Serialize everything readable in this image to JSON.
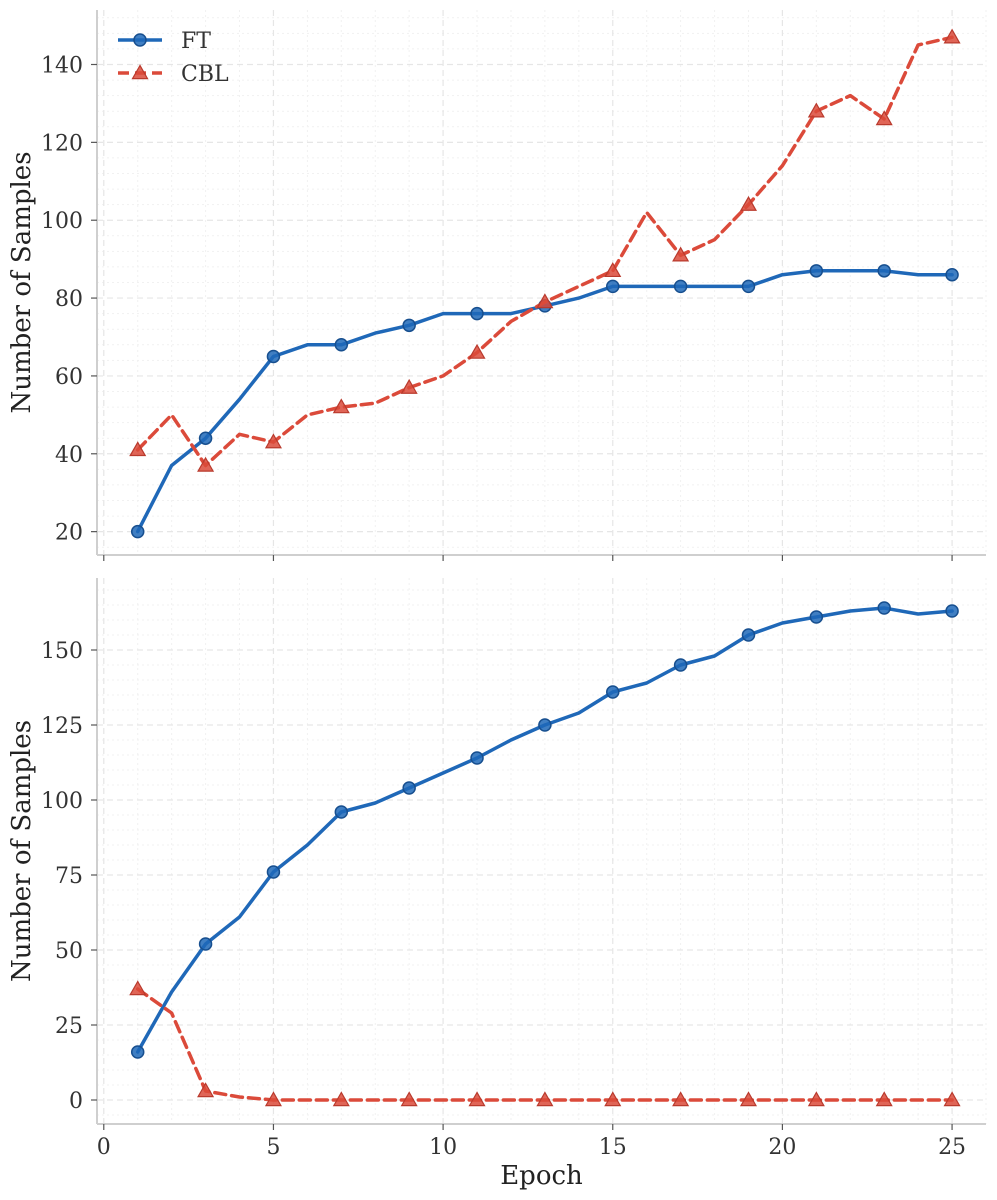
{
  "chart_data": {
    "type": "line",
    "xlabel": "Epoch",
    "xlim": [
      -0.2,
      26
    ],
    "xticks": [
      0,
      5,
      10,
      15,
      20,
      25
    ],
    "colors": {
      "FT": "#1f68b8",
      "CBL": "#db4a3a"
    },
    "legend": {
      "placement": "top-left",
      "entries": [
        "FT",
        "CBL"
      ]
    },
    "grid": true,
    "panels": [
      {
        "ylabel": "Number of Samples",
        "ylim": [
          14,
          154
        ],
        "yticks": [
          20,
          40,
          60,
          80,
          100,
          120,
          140
        ],
        "show_legend": true,
        "series": [
          {
            "name": "FT",
            "style": "solid",
            "marker": "circle",
            "x": [
              1,
              2,
              3,
              4,
              5,
              6,
              7,
              8,
              9,
              10,
              11,
              12,
              13,
              14,
              15,
              16,
              17,
              18,
              19,
              20,
              21,
              22,
              23,
              24,
              25
            ],
            "y": [
              20,
              37,
              44,
              54,
              65,
              68,
              68,
              71,
              73,
              76,
              76,
              76,
              78,
              80,
              83,
              83,
              83,
              83,
              83,
              86,
              87,
              87,
              87,
              86,
              86
            ],
            "marker_x": [
              1,
              3,
              5,
              7,
              9,
              11,
              13,
              15,
              17,
              19,
              21,
              23,
              25
            ]
          },
          {
            "name": "CBL",
            "style": "dashed",
            "marker": "triangle",
            "x": [
              1,
              2,
              3,
              4,
              5,
              6,
              7,
              8,
              9,
              10,
              11,
              12,
              13,
              14,
              15,
              16,
              17,
              18,
              19,
              20,
              21,
              22,
              23,
              24,
              25
            ],
            "y": [
              41,
              50,
              37,
              45,
              43,
              50,
              52,
              53,
              57,
              60,
              66,
              74,
              79,
              83,
              87,
              102,
              91,
              95,
              104,
              114,
              128,
              132,
              126,
              145,
              147
            ],
            "marker_x": [
              1,
              3,
              5,
              7,
              9,
              11,
              13,
              15,
              17,
              19,
              21,
              23,
              25
            ]
          }
        ]
      },
      {
        "ylabel": "Number of Samples",
        "ylim": [
          -8,
          174
        ],
        "yticks": [
          0,
          25,
          50,
          75,
          100,
          125,
          150
        ],
        "show_legend": false,
        "series": [
          {
            "name": "FT",
            "style": "solid",
            "marker": "circle",
            "x": [
              1,
              2,
              3,
              4,
              5,
              6,
              7,
              8,
              9,
              10,
              11,
              12,
              13,
              14,
              15,
              16,
              17,
              18,
              19,
              20,
              21,
              22,
              23,
              24,
              25
            ],
            "y": [
              16,
              36,
              52,
              61,
              76,
              85,
              96,
              99,
              104,
              109,
              114,
              120,
              125,
              129,
              136,
              139,
              145,
              148,
              155,
              159,
              161,
              163,
              164,
              162,
              163
            ],
            "marker_x": [
              1,
              3,
              5,
              7,
              9,
              11,
              13,
              15,
              17,
              19,
              21,
              23,
              25
            ]
          },
          {
            "name": "CBL",
            "style": "dashed",
            "marker": "triangle",
            "x": [
              1,
              2,
              3,
              4,
              5,
              6,
              7,
              8,
              9,
              10,
              11,
              12,
              13,
              14,
              15,
              16,
              17,
              18,
              19,
              20,
              21,
              22,
              23,
              24,
              25
            ],
            "y": [
              37,
              29,
              3,
              1,
              0,
              0,
              0,
              0,
              0,
              0,
              0,
              0,
              0,
              0,
              0,
              0,
              0,
              0,
              0,
              0,
              0,
              0,
              0,
              0,
              0
            ],
            "marker_x": [
              1,
              3,
              5,
              7,
              9,
              11,
              13,
              15,
              17,
              19,
              21,
              23,
              25
            ]
          }
        ]
      }
    ]
  }
}
